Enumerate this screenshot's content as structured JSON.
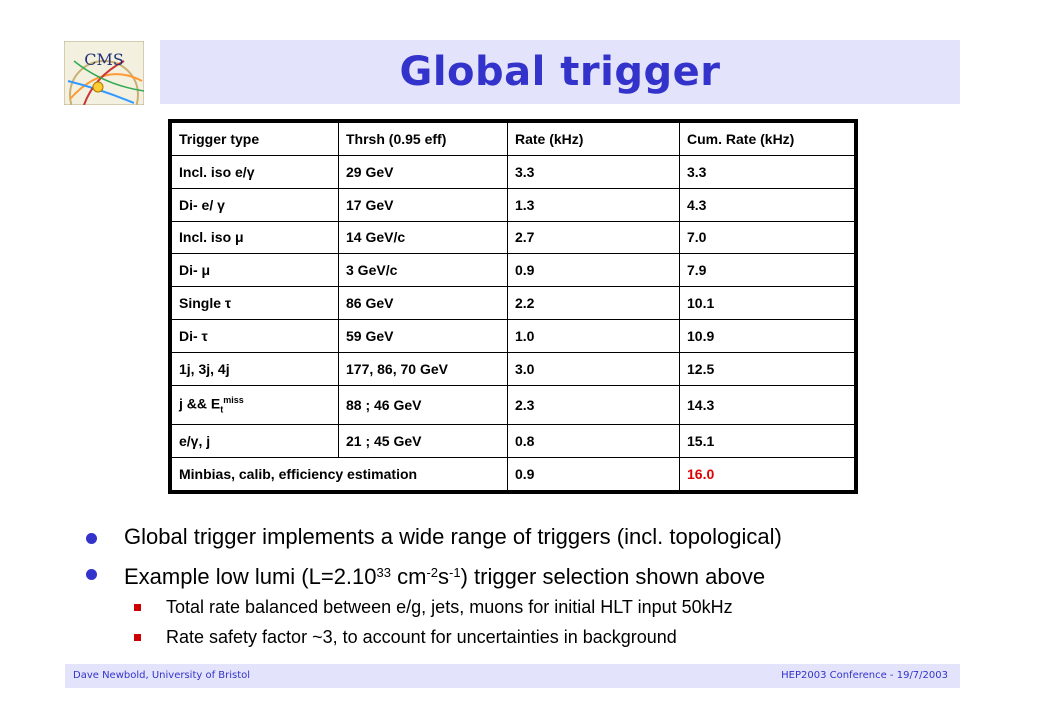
{
  "logo": {
    "text": "CMS"
  },
  "title": "Global trigger",
  "table": {
    "header": [
      "Trigger type",
      "Thrsh (0.95 eff)",
      "Rate (kHz)",
      "Cum. Rate (kHz)"
    ],
    "rows": [
      [
        "Incl. iso e/γ",
        "29 GeV",
        "3.3",
        "3.3"
      ],
      [
        "Di- e/ γ",
        "17 GeV",
        "1.3",
        "4.3"
      ],
      [
        "Incl. iso μ",
        "14 GeV/c",
        "2.7",
        "7.0"
      ],
      [
        "Di- μ",
        "3 GeV/c",
        "0.9",
        "7.9"
      ],
      [
        "Single τ",
        "86 GeV",
        "2.2",
        "10.1"
      ],
      [
        "Di- τ",
        "59 GeV",
        "1.0",
        "10.9"
      ],
      [
        "1j, 3j, 4j",
        "177, 86, 70 GeV",
        "3.0",
        "12.5"
      ],
      [
        "j && E",
        "88 ; 46 GeV",
        "2.3",
        "14.3"
      ],
      [
        "e/γ, j",
        "21 ; 45 GeV",
        "0.8",
        "15.1"
      ]
    ],
    "missing_et_sub": "t",
    "missing_et_sup": "miss",
    "last_row": {
      "label": "Minbias, calib, efficiency estimation",
      "rate": "0.9",
      "cum": "16.0"
    },
    "highlight_color": "#dd0000"
  },
  "bullets": [
    {
      "text": "Global trigger implements a wide range of triggers (incl. topological)"
    },
    {
      "pre": "Example low lumi (L=2.10",
      "sup1": "33",
      "mid1": " cm",
      "sup2": "-2",
      "mid2": "s",
      "sup3": "-1",
      "post": ") trigger selection shown above"
    }
  ],
  "sub_bullets": [
    "Total rate balanced between e/g, jets, muons for initial HLT input 50kHz",
    "Rate safety factor ~3, to account for uncertainties in background"
  ],
  "footer": {
    "left": "Dave Newbold, University of Bristol",
    "right": "HEP2003 Conference - 19/7/2003"
  },
  "colors": {
    "accent": "#3333cc",
    "title_bg": "#e3e3fb",
    "bullet_square": "#cc0000"
  }
}
